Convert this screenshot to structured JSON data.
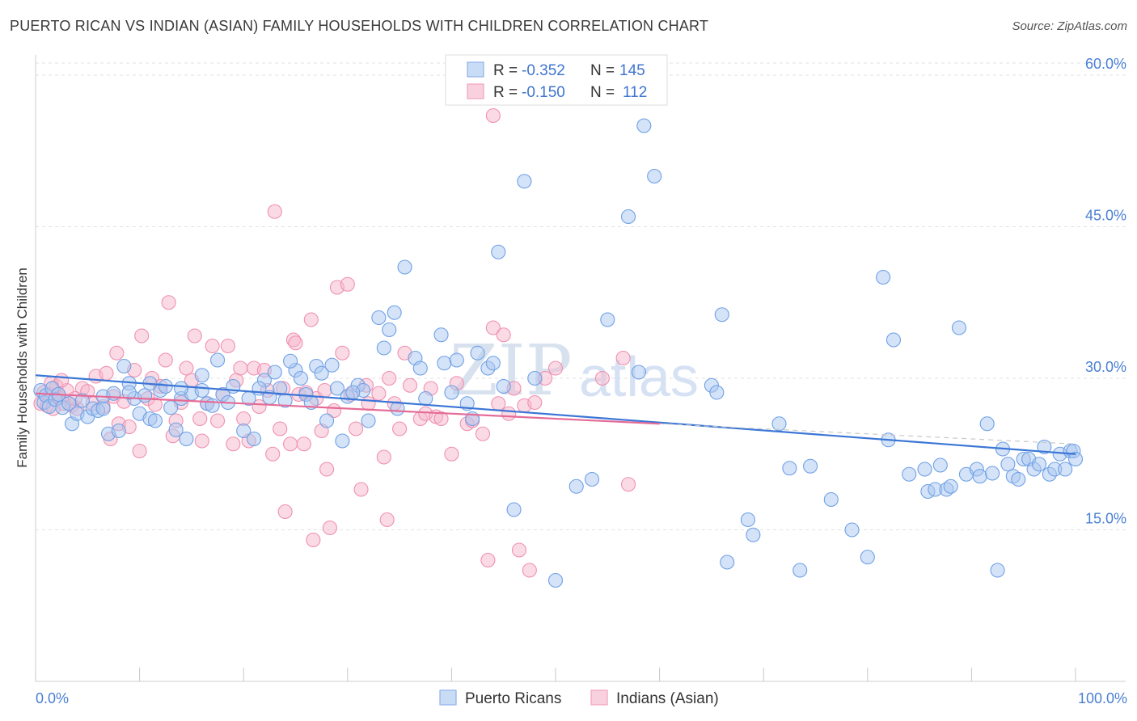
{
  "title": "PUERTO RICAN VS INDIAN (ASIAN) FAMILY HOUSEHOLDS WITH CHILDREN CORRELATION CHART",
  "source": "Source: ZipAtlas.com",
  "watermark": {
    "zip": "ZIP",
    "atlas": "atlas"
  },
  "legend": {
    "rows": [
      {
        "r_label": "R =",
        "r_value": "-0.352",
        "n_label": "N =",
        "n_value": "145",
        "color": "#a9c7f0"
      },
      {
        "r_label": "R =",
        "r_value": "-0.150",
        "n_label": "N =",
        "n_value": "112",
        "color": "#f6b8cc"
      }
    ]
  },
  "bottom_legend": [
    {
      "label": "Puerto Ricans",
      "color": "#a9c7f0"
    },
    {
      "label": "Indians (Asian)",
      "color": "#f6b8cc"
    }
  ],
  "chart_data": {
    "type": "scatter",
    "title": "PUERTO RICAN VS INDIAN (ASIAN) FAMILY HOUSEHOLDS WITH CHILDREN CORRELATION CHART",
    "xlabel": "",
    "ylabel": "Family Households with Children",
    "xlim": [
      0,
      100
    ],
    "ylim": [
      0,
      62
    ],
    "x_tick_labels": [
      "0.0%",
      "100.0%"
    ],
    "y_ticks": [
      15,
      30,
      45,
      60
    ],
    "y_tick_labels": [
      "15.0%",
      "30.0%",
      "45.0%",
      "60.0%"
    ],
    "grid": true,
    "legend_position": "top-center",
    "series": [
      {
        "name": "Puerto Ricans",
        "color": "#6fa0e6",
        "fill": "#a9c7f0",
        "trend": {
          "x": [
            0,
            100
          ],
          "y": [
            30.3,
            22.5
          ]
        },
        "points": [
          [
            0.5,
            28.8
          ],
          [
            0.8,
            27.6
          ],
          [
            1.0,
            28.3
          ],
          [
            1.3,
            27.2
          ],
          [
            1.6,
            29.0
          ],
          [
            1.9,
            27.9
          ],
          [
            2.2,
            28.4
          ],
          [
            2.6,
            27.1
          ],
          [
            3.2,
            27.5
          ],
          [
            3.5,
            25.5
          ],
          [
            4.0,
            26.5
          ],
          [
            4.5,
            27.8
          ],
          [
            5.0,
            26.2
          ],
          [
            5.5,
            27.0
          ],
          [
            6.0,
            26.8
          ],
          [
            6.5,
            28.2
          ],
          [
            7.0,
            24.5
          ],
          [
            7.5,
            28.5
          ],
          [
            8.0,
            24.8
          ],
          [
            8.5,
            31.2
          ],
          [
            9.0,
            29.5
          ],
          [
            9.5,
            28.0
          ],
          [
            10.0,
            26.5
          ],
          [
            10.5,
            28.3
          ],
          [
            11.0,
            26.0
          ],
          [
            11.5,
            25.8
          ],
          [
            12.0,
            28.8
          ],
          [
            12.5,
            29.2
          ],
          [
            13.0,
            27.1
          ],
          [
            13.5,
            24.9
          ],
          [
            14.0,
            28.0
          ],
          [
            14.5,
            24.0
          ],
          [
            15.0,
            28.5
          ],
          [
            16.0,
            30.3
          ],
          [
            16.5,
            27.5
          ],
          [
            17.0,
            27.3
          ],
          [
            17.5,
            31.8
          ],
          [
            18.0,
            28.4
          ],
          [
            19.0,
            29.2
          ],
          [
            20.0,
            24.8
          ],
          [
            20.5,
            28.0
          ],
          [
            21.0,
            24.0
          ],
          [
            22.0,
            29.8
          ],
          [
            22.5,
            28.1
          ],
          [
            23.0,
            30.6
          ],
          [
            23.5,
            29.0
          ],
          [
            24.0,
            27.8
          ],
          [
            25.0,
            30.8
          ],
          [
            25.5,
            30.0
          ],
          [
            26.0,
            28.4
          ],
          [
            27.0,
            31.2
          ],
          [
            27.5,
            30.5
          ],
          [
            28.0,
            25.8
          ],
          [
            28.5,
            31.3
          ],
          [
            29.0,
            29.0
          ],
          [
            29.5,
            23.8
          ],
          [
            30.0,
            28.2
          ],
          [
            31.0,
            29.3
          ],
          [
            31.5,
            28.8
          ],
          [
            32.0,
            25.8
          ],
          [
            33.0,
            36.0
          ],
          [
            33.5,
            33.0
          ],
          [
            34.0,
            34.8
          ],
          [
            34.5,
            36.5
          ],
          [
            34.8,
            27.0
          ],
          [
            35.5,
            41.0
          ],
          [
            36.5,
            32.0
          ],
          [
            37.5,
            28.0
          ],
          [
            39.0,
            34.3
          ],
          [
            39.3,
            31.5
          ],
          [
            40.0,
            28.6
          ],
          [
            41.5,
            27.5
          ],
          [
            42.0,
            26.0
          ],
          [
            42.5,
            32.5
          ],
          [
            43.5,
            31.0
          ],
          [
            44.5,
            42.5
          ],
          [
            45.0,
            29.2
          ],
          [
            46.0,
            17.0
          ],
          [
            47.0,
            49.5
          ],
          [
            48.0,
            30.0
          ],
          [
            50.0,
            10.0
          ],
          [
            52.0,
            19.3
          ],
          [
            53.5,
            20.0
          ],
          [
            55.0,
            35.8
          ],
          [
            57.0,
            46.0
          ],
          [
            58.5,
            55.0
          ],
          [
            59.5,
            50.0
          ],
          [
            65.0,
            29.3
          ],
          [
            65.5,
            28.6
          ],
          [
            66.0,
            36.3
          ],
          [
            66.5,
            11.8
          ],
          [
            68.5,
            16.0
          ],
          [
            69.0,
            14.5
          ],
          [
            71.5,
            25.5
          ],
          [
            72.5,
            21.1
          ],
          [
            73.5,
            11.0
          ],
          [
            74.5,
            21.3
          ],
          [
            76.5,
            18.0
          ],
          [
            78.5,
            15.0
          ],
          [
            80.0,
            12.3
          ],
          [
            81.5,
            40.0
          ],
          [
            82.0,
            23.9
          ],
          [
            82.5,
            33.8
          ],
          [
            84.0,
            20.5
          ],
          [
            85.5,
            21.0
          ],
          [
            85.8,
            18.8
          ],
          [
            86.5,
            19.0
          ],
          [
            87.0,
            21.4
          ],
          [
            87.6,
            19.0
          ],
          [
            88.0,
            19.3
          ],
          [
            88.8,
            35.0
          ],
          [
            89.5,
            20.5
          ],
          [
            90.5,
            21.0
          ],
          [
            90.8,
            20.3
          ],
          [
            91.5,
            25.5
          ],
          [
            92.0,
            20.6
          ],
          [
            92.5,
            11.0
          ],
          [
            93.0,
            23.0
          ],
          [
            93.5,
            21.5
          ],
          [
            94.0,
            20.3
          ],
          [
            94.5,
            20.0
          ],
          [
            95.0,
            22.0
          ],
          [
            95.5,
            22.0
          ],
          [
            96.0,
            21.0
          ],
          [
            96.5,
            21.5
          ],
          [
            97.0,
            23.2
          ],
          [
            97.5,
            20.5
          ],
          [
            98.0,
            21.0
          ],
          [
            98.5,
            22.5
          ],
          [
            99.0,
            21.0
          ],
          [
            99.5,
            22.8
          ],
          [
            99.8,
            22.8
          ],
          [
            100.0,
            22.0
          ],
          [
            58.0,
            30.6
          ],
          [
            18.5,
            27.6
          ],
          [
            24.5,
            31.7
          ],
          [
            40.5,
            31.8
          ],
          [
            44.0,
            31.5
          ],
          [
            37.0,
            31.0
          ],
          [
            16.0,
            28.8
          ],
          [
            14.0,
            29.0
          ],
          [
            6.5,
            27.0
          ],
          [
            11.0,
            29.5
          ],
          [
            9.0,
            28.6
          ],
          [
            30.5,
            28.6
          ],
          [
            21.5,
            29.0
          ],
          [
            26.5,
            27.6
          ]
        ]
      },
      {
        "name": "Indians (Asian)",
        "color": "#f08fb0",
        "fill": "#f6b8cc",
        "trend": {
          "x": [
            0,
            60
          ],
          "y": [
            28.5,
            25.5
          ]
        },
        "points": [
          [
            0.5,
            27.5
          ],
          [
            0.8,
            28.6
          ],
          [
            1.1,
            27.3
          ],
          [
            1.4,
            28.4
          ],
          [
            1.7,
            27.0
          ],
          [
            2.0,
            29.2
          ],
          [
            2.3,
            28.1
          ],
          [
            2.7,
            27.5
          ],
          [
            3.0,
            28.8
          ],
          [
            3.5,
            27.3
          ],
          [
            4.0,
            27.0
          ],
          [
            4.5,
            29.0
          ],
          [
            5.0,
            28.7
          ],
          [
            5.5,
            27.5
          ],
          [
            5.8,
            30.2
          ],
          [
            6.5,
            27.2
          ],
          [
            6.8,
            30.5
          ],
          [
            7.2,
            24.0
          ],
          [
            7.5,
            28.2
          ],
          [
            8.0,
            25.5
          ],
          [
            8.5,
            27.7
          ],
          [
            9.0,
            25.2
          ],
          [
            9.5,
            30.8
          ],
          [
            10.0,
            22.8
          ],
          [
            10.2,
            34.2
          ],
          [
            10.8,
            28.0
          ],
          [
            11.2,
            30.0
          ],
          [
            11.5,
            27.4
          ],
          [
            12.0,
            29.2
          ],
          [
            12.5,
            31.8
          ],
          [
            12.8,
            37.5
          ],
          [
            13.2,
            24.3
          ],
          [
            13.5,
            25.8
          ],
          [
            14.0,
            27.6
          ],
          [
            14.5,
            31.0
          ],
          [
            15.0,
            29.8
          ],
          [
            15.3,
            34.2
          ],
          [
            15.8,
            26.0
          ],
          [
            16.0,
            23.8
          ],
          [
            16.5,
            27.5
          ],
          [
            17.0,
            33.2
          ],
          [
            17.5,
            25.8
          ],
          [
            18.0,
            28.4
          ],
          [
            18.5,
            33.2
          ],
          [
            19.0,
            23.5
          ],
          [
            19.3,
            29.8
          ],
          [
            19.7,
            31.0
          ],
          [
            20.0,
            26.0
          ],
          [
            20.5,
            23.8
          ],
          [
            21.0,
            31.0
          ],
          [
            21.5,
            27.2
          ],
          [
            22.0,
            30.8
          ],
          [
            22.3,
            28.8
          ],
          [
            22.8,
            22.5
          ],
          [
            23.0,
            46.5
          ],
          [
            23.5,
            25.0
          ],
          [
            23.8,
            29.0
          ],
          [
            24.0,
            16.8
          ],
          [
            24.5,
            23.5
          ],
          [
            24.8,
            33.8
          ],
          [
            25.0,
            33.5
          ],
          [
            25.3,
            28.4
          ],
          [
            25.8,
            23.5
          ],
          [
            26.0,
            28.6
          ],
          [
            26.5,
            35.8
          ],
          [
            26.7,
            14.0
          ],
          [
            27.0,
            28.0
          ],
          [
            27.5,
            24.8
          ],
          [
            27.8,
            28.8
          ],
          [
            28.0,
            21.0
          ],
          [
            28.3,
            15.2
          ],
          [
            28.7,
            26.8
          ],
          [
            29.0,
            39.0
          ],
          [
            29.5,
            32.5
          ],
          [
            30.0,
            39.3
          ],
          [
            30.3,
            28.4
          ],
          [
            30.8,
            25.0
          ],
          [
            31.3,
            19.0
          ],
          [
            31.8,
            29.3
          ],
          [
            32.0,
            27.5
          ],
          [
            33.0,
            28.5
          ],
          [
            33.5,
            22.2
          ],
          [
            33.8,
            16.0
          ],
          [
            34.0,
            30.0
          ],
          [
            34.5,
            27.5
          ],
          [
            35.0,
            25.0
          ],
          [
            35.5,
            32.5
          ],
          [
            36.0,
            29.3
          ],
          [
            37.0,
            26.0
          ],
          [
            37.5,
            26.5
          ],
          [
            38.0,
            29.0
          ],
          [
            38.5,
            26.2
          ],
          [
            39.0,
            26.0
          ],
          [
            40.0,
            22.5
          ],
          [
            40.5,
            29.5
          ],
          [
            41.5,
            25.5
          ],
          [
            42.0,
            25.8
          ],
          [
            43.0,
            24.5
          ],
          [
            43.5,
            12.0
          ],
          [
            44.0,
            35.0
          ],
          [
            44.5,
            27.5
          ],
          [
            45.0,
            34.3
          ],
          [
            45.5,
            26.5
          ],
          [
            46.0,
            29.0
          ],
          [
            46.5,
            13.0
          ],
          [
            47.0,
            27.3
          ],
          [
            47.5,
            11.0
          ],
          [
            48.0,
            27.6
          ],
          [
            49.0,
            30.0
          ],
          [
            54.5,
            30.0
          ],
          [
            57.0,
            19.5
          ],
          [
            1.5,
            29.5
          ],
          [
            2.5,
            29.8
          ],
          [
            3.8,
            28.0
          ],
          [
            44.0,
            56.0
          ],
          [
            50.0,
            31.0
          ],
          [
            56.5,
            32.0
          ],
          [
            7.8,
            32.5
          ]
        ]
      }
    ]
  }
}
